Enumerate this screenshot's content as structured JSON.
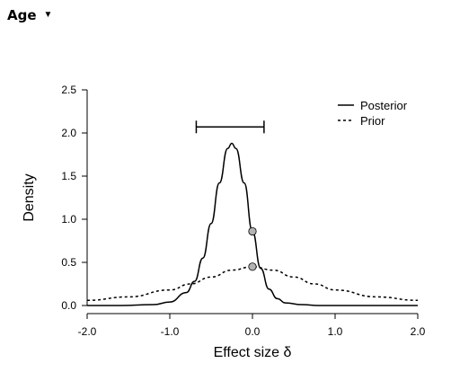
{
  "header": {
    "title": "Age",
    "toggle_icon": "triangle-down-icon",
    "toggle_glyph": "▼"
  },
  "chart_data": {
    "type": "line",
    "xlabel": "Effect size δ",
    "ylabel": "Density",
    "xlim": [
      -2.0,
      2.0
    ],
    "ylim": [
      0,
      2.5
    ],
    "xticks": [
      "-2.0",
      "-1.0",
      "0.0",
      "1.0",
      "2.0"
    ],
    "xtick_values": [
      -2,
      -1,
      0,
      1,
      2
    ],
    "yticks": [
      "0.0",
      "0.5",
      "1.0",
      "1.5",
      "2.0",
      "2.5"
    ],
    "ytick_values": [
      0,
      0.5,
      1.0,
      1.5,
      2.0,
      2.5
    ],
    "grid": false,
    "legend_position": "top-right",
    "series": [
      {
        "name": "Posterior",
        "style": "solid",
        "x": [
          -2.0,
          -1.6,
          -1.2,
          -1.0,
          -0.8,
          -0.7,
          -0.6,
          -0.5,
          -0.4,
          -0.3,
          -0.25,
          -0.2,
          -0.1,
          0.0,
          0.1,
          0.2,
          0.3,
          0.4,
          0.6,
          0.8,
          1.0,
          1.5,
          2.0
        ],
        "y": [
          0.0,
          0.0,
          0.01,
          0.04,
          0.15,
          0.28,
          0.55,
          0.95,
          1.42,
          1.82,
          1.88,
          1.82,
          1.42,
          0.86,
          0.43,
          0.19,
          0.08,
          0.03,
          0.01,
          0.0,
          0.0,
          0.0,
          0.0
        ]
      },
      {
        "name": "Prior",
        "style": "dashed",
        "x": [
          -2.0,
          -1.5,
          -1.0,
          -0.75,
          -0.5,
          -0.25,
          0.0,
          0.25,
          0.5,
          0.75,
          1.0,
          1.5,
          2.0
        ],
        "y": [
          0.06,
          0.1,
          0.18,
          0.25,
          0.33,
          0.41,
          0.45,
          0.41,
          0.33,
          0.25,
          0.18,
          0.1,
          0.06
        ]
      }
    ],
    "points": [
      {
        "name": "posterior-at-zero",
        "x": 0.0,
        "y": 0.86
      },
      {
        "name": "prior-at-zero",
        "x": 0.0,
        "y": 0.45
      }
    ],
    "credible_interval": {
      "low": -0.68,
      "high": 0.14,
      "y": 2.07
    }
  }
}
